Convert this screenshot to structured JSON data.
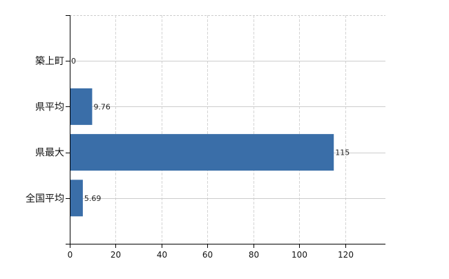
{
  "chart_data": {
    "type": "bar",
    "orientation": "horizontal",
    "categories": [
      "築上町",
      "県平均",
      "県最大",
      "全国平均"
    ],
    "values": [
      0,
      9.76,
      115,
      5.69
    ],
    "data_labels": [
      "0",
      "9.76",
      "115",
      "5.69"
    ],
    "x_ticks": [
      "0",
      "20",
      "40",
      "60",
      "80",
      "100",
      "120"
    ],
    "xlim": [
      0,
      137.5
    ],
    "grid": true,
    "bar_color": "#3a6ea8",
    "title": "",
    "xlabel": "",
    "ylabel": ""
  }
}
